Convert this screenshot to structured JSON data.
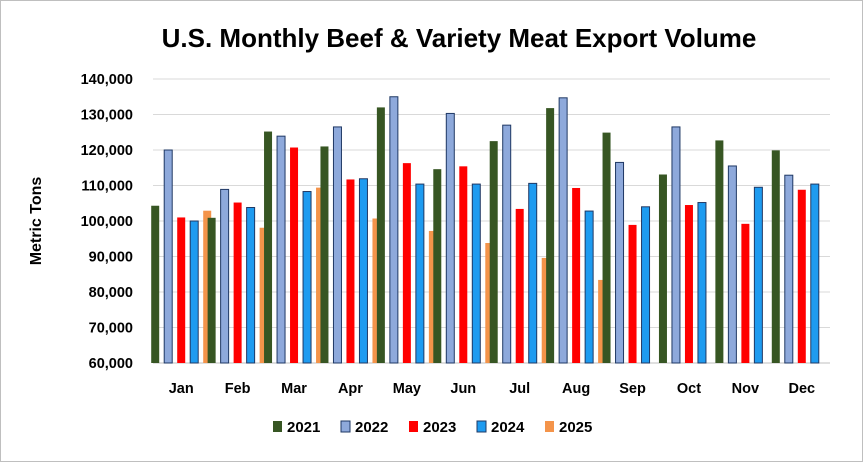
{
  "chart_data": {
    "type": "bar",
    "title": "U.S. Monthly Beef & Variety Meat Export Volume",
    "xlabel": "",
    "ylabel": "Metric Tons",
    "ylim": [
      60000,
      140000
    ],
    "yticks": [
      60000,
      70000,
      80000,
      90000,
      100000,
      110000,
      120000,
      130000,
      140000
    ],
    "ytick_labels": [
      "60,000",
      "70,000",
      "80,000",
      "90,000",
      "100,000",
      "110,000",
      "120,000",
      "130,000",
      "140,000"
    ],
    "grid": "horizontal",
    "legend_position": "bottom",
    "categories": [
      "Jan",
      "Feb",
      "Mar",
      "Apr",
      "May",
      "Jun",
      "Jul",
      "Aug",
      "Sep",
      "Oct",
      "Nov",
      "Dec"
    ],
    "series": [
      {
        "name": "2021",
        "color": "#375623",
        "values": [
          104300,
          100900,
          125200,
          121000,
          132000,
          114600,
          122500,
          131800,
          124900,
          113100,
          122700,
          119900
        ]
      },
      {
        "name": "2022",
        "color": "#8EA9DB",
        "stroke": "#1F3864",
        "values": [
          120000,
          108900,
          123900,
          126500,
          135000,
          130300,
          127000,
          134700,
          116500,
          126500,
          115500,
          112900
        ]
      },
      {
        "name": "2023",
        "color": "#FF0000",
        "values": [
          101000,
          105200,
          120700,
          111700,
          116300,
          115400,
          103400,
          109300,
          98900,
          104500,
          99200,
          108800
        ]
      },
      {
        "name": "2024",
        "color": "#1E9BF0",
        "stroke": "#1F3864",
        "values": [
          100000,
          103800,
          108300,
          111900,
          110400,
          110400,
          110600,
          102800,
          104000,
          105200,
          109500,
          110400
        ]
      },
      {
        "name": "2025",
        "color": "#F4944A",
        "values": [
          102900,
          98100,
          109400,
          100700,
          97200,
          93800,
          89600,
          83400,
          null,
          null,
          null,
          null
        ]
      }
    ]
  }
}
